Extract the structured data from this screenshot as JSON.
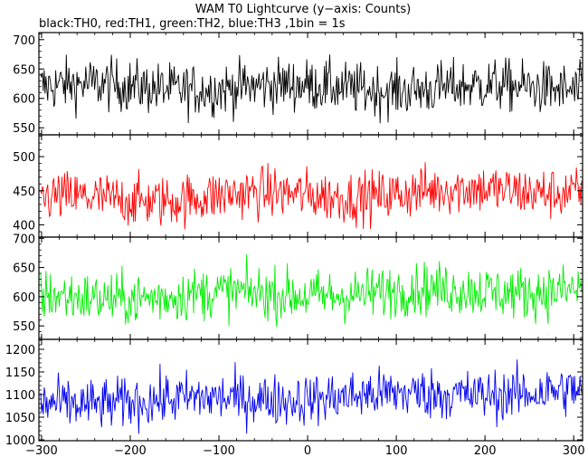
{
  "title": "WAM T0 Lightcurve (y−axis: Counts)",
  "subtitle": "black:TH0, red:TH1, green:TH2, blue:TH3 ,1bin = 1s",
  "chart_data": {
    "type": "line",
    "xlim": [
      -303,
      310
    ],
    "x_ticks": [
      "−300",
      "−200",
      "−100",
      "0",
      "100",
      "200",
      "300"
    ],
    "x_tick_values": [
      -300,
      -200,
      -100,
      0,
      100,
      200,
      300
    ],
    "panels": [
      {
        "name": "TH0",
        "color": "#000000",
        "ylim": [
          538,
          712
        ],
        "yticks": [
          550,
          600,
          650,
          700
        ],
        "ytick_labels": [
          "550",
          "600",
          "650",
          "700"
        ],
        "mean_start": 620,
        "mean_end": 617,
        "noise": 26
      },
      {
        "name": "TH1",
        "color": "#ff0000",
        "ylim": [
          382,
          532
        ],
        "yticks": [
          400,
          450,
          500
        ],
        "ytick_labels": [
          "400",
          "450",
          "500"
        ],
        "mean_start": 436,
        "mean_end": 452,
        "noise": 22
      },
      {
        "name": "TH2",
        "color": "#00ee00",
        "ylim": [
          527,
          702
        ],
        "yticks": [
          550,
          600,
          650,
          700
        ],
        "ytick_labels": [
          "550",
          "600",
          "650",
          "700"
        ],
        "mean_start": 598,
        "mean_end": 613,
        "noise": 26
      },
      {
        "name": "TH3",
        "color": "#0000ee",
        "ylim": [
          998,
          1222
        ],
        "yticks": [
          1000,
          1050,
          1100,
          1150,
          1200
        ],
        "ytick_labels": [
          "1000",
          "1050",
          "1100",
          "1150",
          "1200"
        ],
        "mean_start": 1080,
        "mean_end": 1108,
        "noise": 33
      }
    ]
  }
}
